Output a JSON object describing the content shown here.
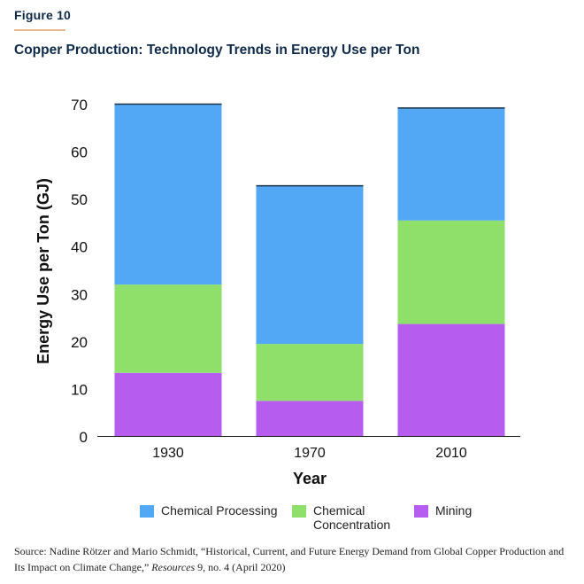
{
  "figure_label": "Figure 10",
  "chart_data": {
    "type": "bar",
    "stacked": true,
    "title": "Copper Production: Technology Trends in Energy Use per Ton",
    "xlabel": "Year",
    "ylabel": "Energy Use per Ton (GJ)",
    "ylim": [
      0,
      70
    ],
    "yticks": [
      "0",
      "10",
      "20",
      "30",
      "40",
      "50",
      "60",
      "70"
    ],
    "categories": [
      "1930",
      "1970",
      "2010"
    ],
    "series": [
      {
        "name": "Mining",
        "color": "#b65cef",
        "values": [
          13.3,
          7.4,
          23.6
        ]
      },
      {
        "name": "Chemical Concentration",
        "color": "#8ee06b",
        "values": [
          18.6,
          12.0,
          21.8
        ]
      },
      {
        "name": "Chemical Processing",
        "color": "#53a8f5",
        "values": [
          38.0,
          33.3,
          23.7
        ]
      }
    ],
    "grid": false,
    "legend_position": "bottom"
  },
  "legend": [
    {
      "lines": [
        "Chemical Processing"
      ],
      "color": "#53a8f5"
    },
    {
      "lines": [
        "Chemical",
        "Concentration"
      ],
      "color": "#8ee06b"
    },
    {
      "lines": [
        "Mining"
      ],
      "color": "#b65cef"
    }
  ],
  "source": {
    "prefix": "Source: Nadine Rötzer and Mario Schmidt, “Historical, Current, and Future Energy Demand from Global Copper Production and Its Impact on Climate Change,”",
    "journal": "Resources",
    "suffix": "9, no. 4 (April 2020)"
  }
}
